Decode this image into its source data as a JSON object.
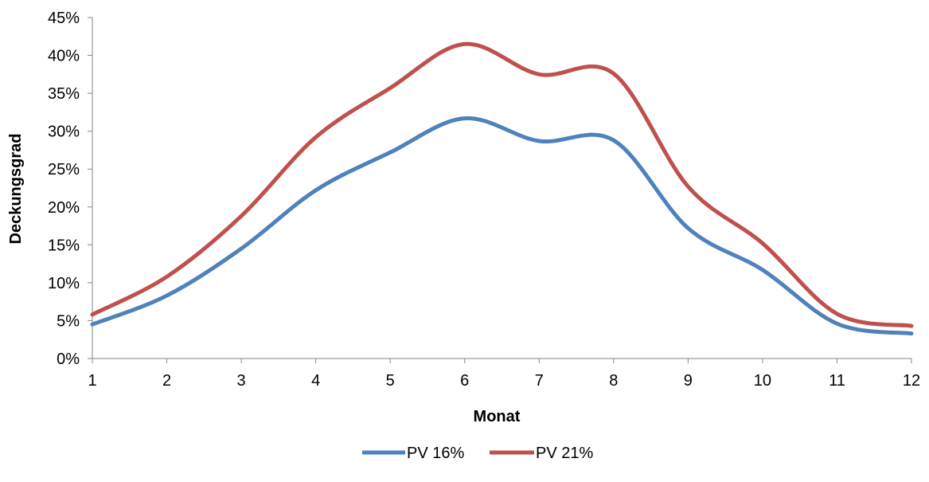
{
  "chart_data": {
    "type": "line",
    "title": "",
    "xlabel": "Monat",
    "ylabel": "Deckungsgrad",
    "x": [
      1,
      2,
      3,
      4,
      5,
      6,
      7,
      8,
      9,
      10,
      11,
      12
    ],
    "x_tick_labels": [
      "1",
      "2",
      "3",
      "4",
      "5",
      "6",
      "7",
      "8",
      "9",
      "10",
      "11",
      "12"
    ],
    "ylim": [
      0,
      0.45
    ],
    "y_ticks": [
      0,
      0.05,
      0.1,
      0.15,
      0.2,
      0.25,
      0.3,
      0.35,
      0.4,
      0.45
    ],
    "y_tick_labels": [
      "0%",
      "5%",
      "10%",
      "15%",
      "20%",
      "25%",
      "30%",
      "35%",
      "40%",
      "45%"
    ],
    "grid": false,
    "smooth": true,
    "legend_position": "bottom",
    "series": [
      {
        "name": "PV 16%",
        "color": "#4F81BD",
        "values": [
          0.045,
          0.083,
          0.145,
          0.222,
          0.272,
          0.317,
          0.287,
          0.288,
          0.172,
          0.117,
          0.046,
          0.033
        ]
      },
      {
        "name": "PV 21%",
        "color": "#C0504D",
        "values": [
          0.058,
          0.108,
          0.188,
          0.292,
          0.357,
          0.415,
          0.375,
          0.376,
          0.227,
          0.152,
          0.059,
          0.043
        ]
      }
    ]
  }
}
